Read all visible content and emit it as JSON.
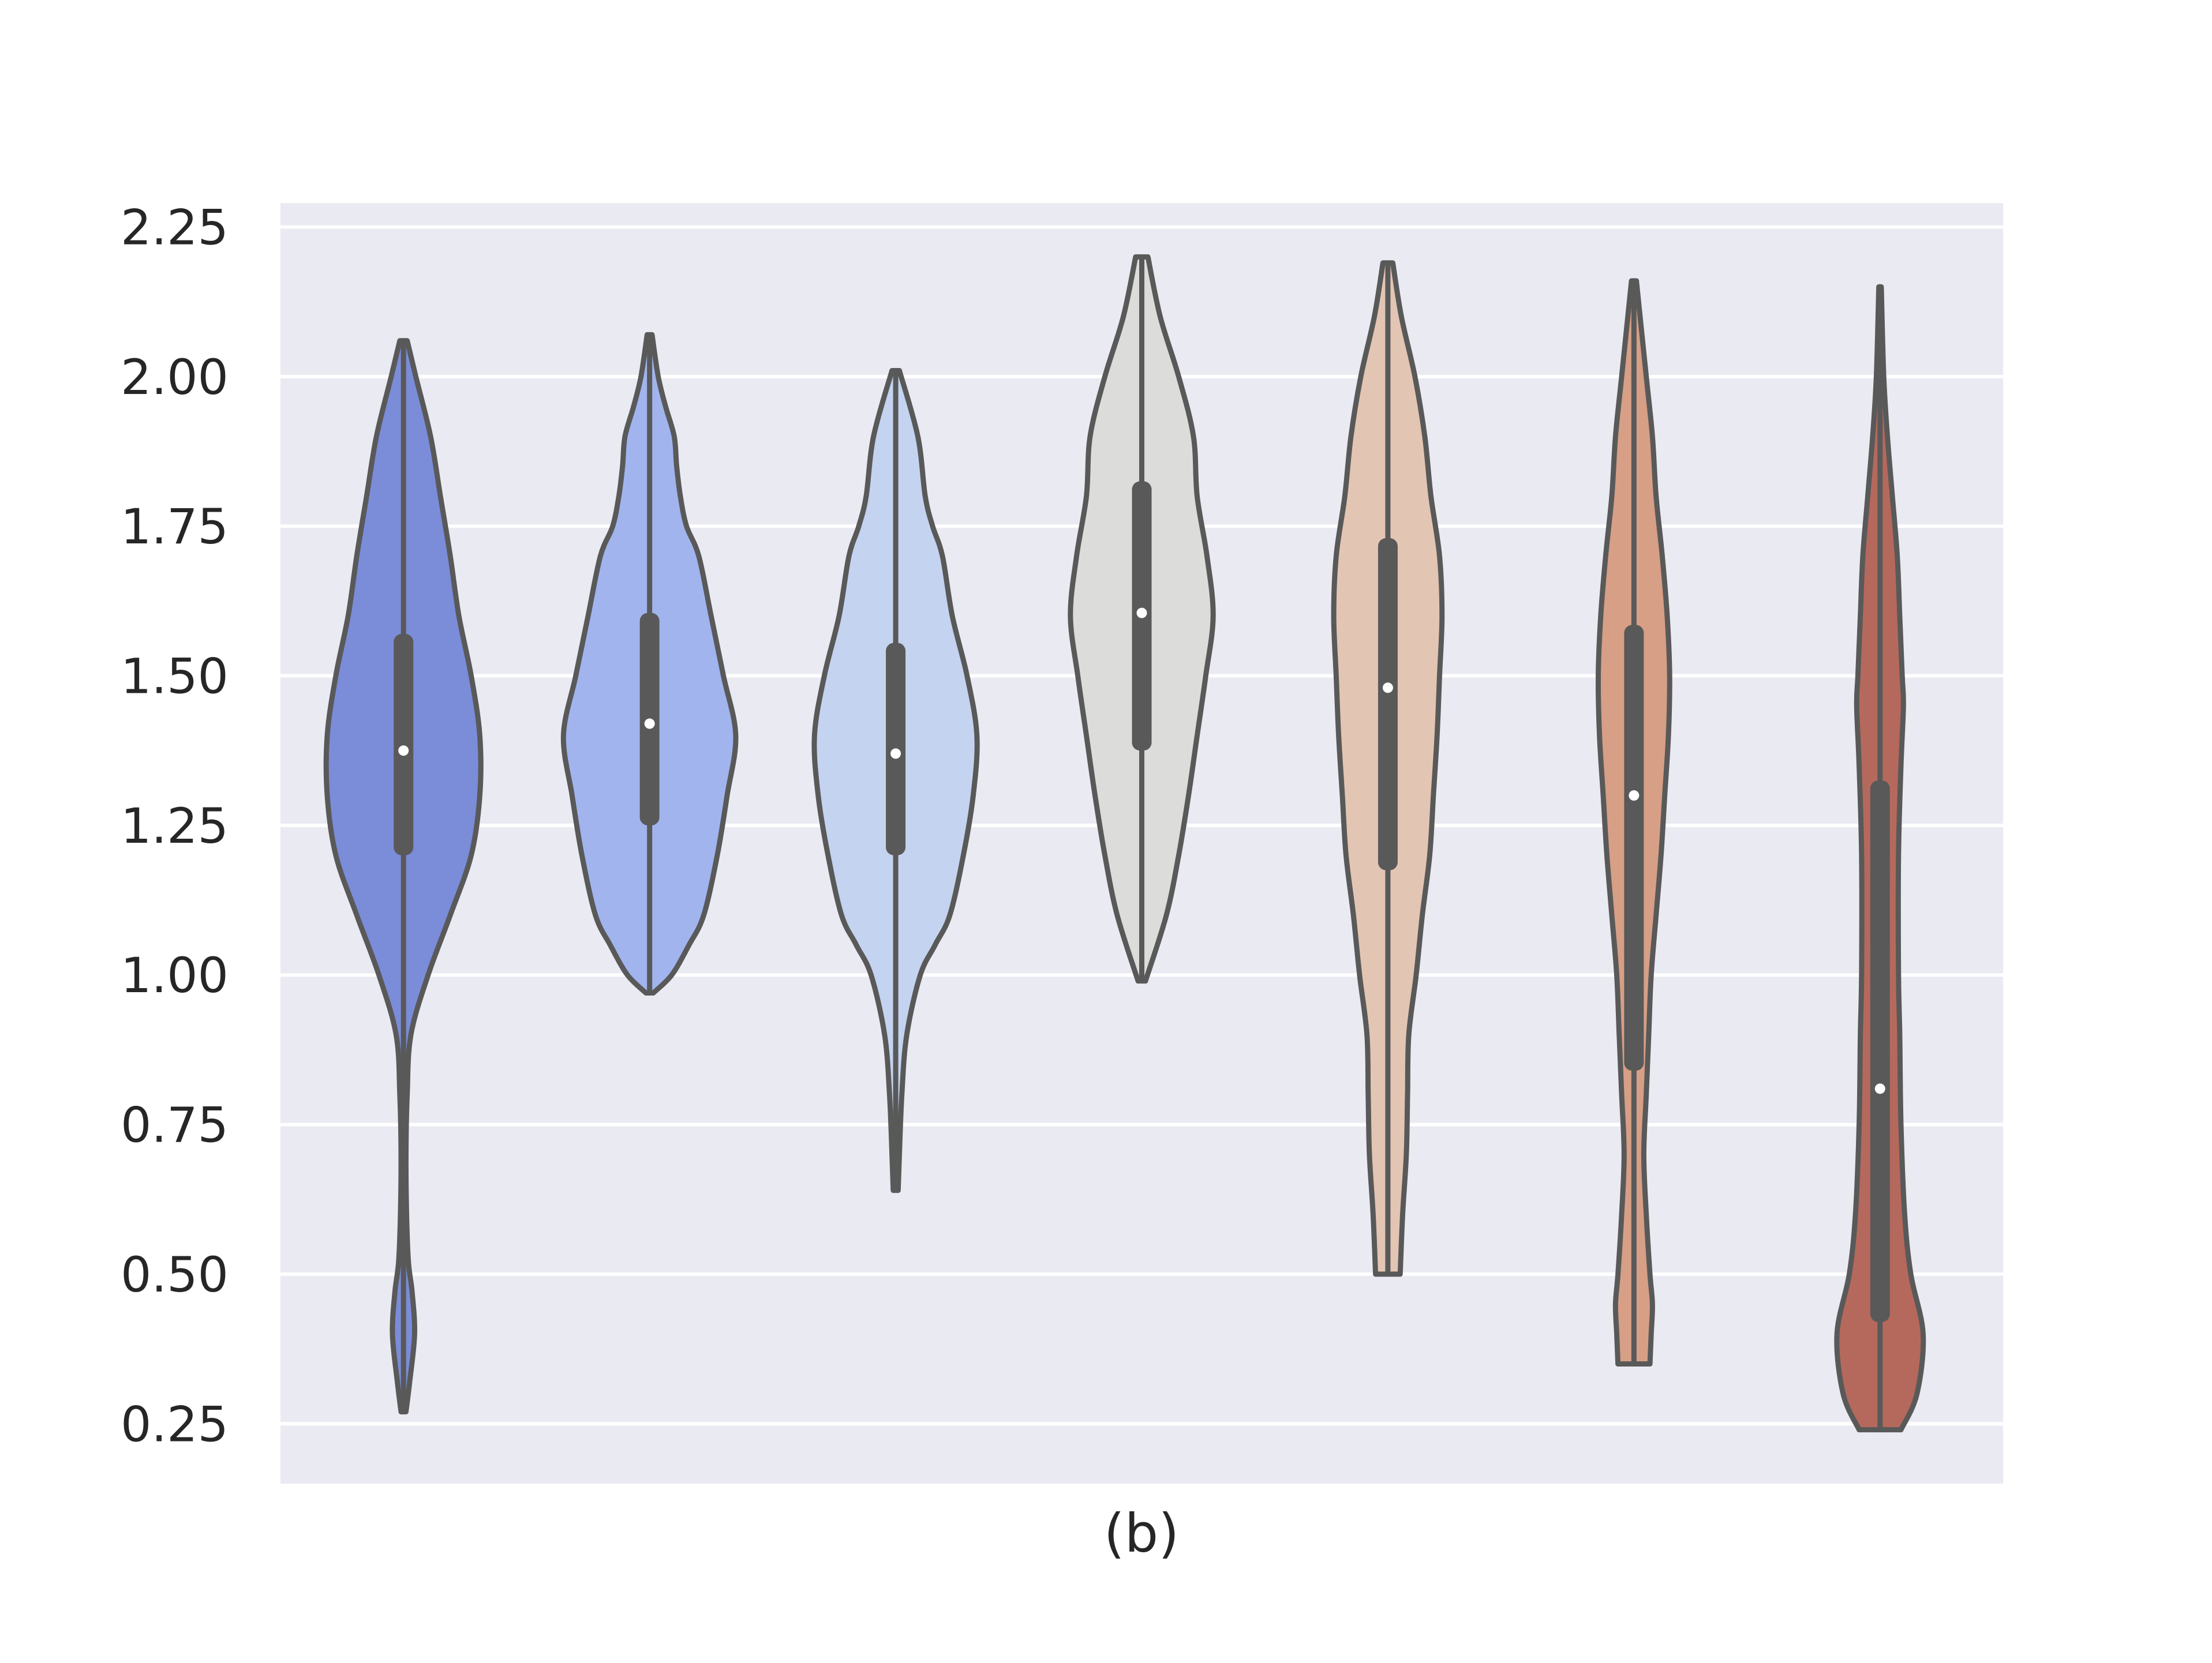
{
  "chart_data": {
    "type": "violin",
    "title": "",
    "xlabel": "(b)",
    "ylabel": "",
    "ylim": [
      0.15,
      2.29
    ],
    "yticks": [
      0.25,
      0.5,
      0.75,
      1.0,
      1.25,
      1.5,
      1.75,
      2.0,
      2.25
    ],
    "ytick_labels": [
      "0.25",
      "0.50",
      "0.75",
      "1.00",
      "1.25",
      "1.50",
      "1.75",
      "2.00",
      "2.25"
    ],
    "grid": true,
    "legend": "none",
    "style": {
      "background": "#eaeaf2",
      "grid_color": "#ffffff",
      "outline_color": "#595959"
    },
    "series": [
      {
        "color": "#7b8cd9",
        "min": 0.27,
        "max": 2.06,
        "q1": 1.2,
        "median": 1.375,
        "q3": 1.57,
        "profile": [
          [
            0.27,
            0.02
          ],
          [
            0.32,
            0.05
          ],
          [
            0.4,
            0.09
          ],
          [
            0.47,
            0.07
          ],
          [
            0.52,
            0.04
          ],
          [
            0.6,
            0.025
          ],
          [
            0.7,
            0.02
          ],
          [
            0.8,
            0.03
          ],
          [
            0.9,
            0.06
          ],
          [
            1.0,
            0.2
          ],
          [
            1.1,
            0.38
          ],
          [
            1.2,
            0.55
          ],
          [
            1.3,
            0.62
          ],
          [
            1.4,
            0.62
          ],
          [
            1.5,
            0.55
          ],
          [
            1.6,
            0.45
          ],
          [
            1.7,
            0.38
          ],
          [
            1.8,
            0.3
          ],
          [
            1.9,
            0.22
          ],
          [
            2.0,
            0.1
          ],
          [
            2.06,
            0.03
          ]
        ]
      },
      {
        "color": "#a1b4ee",
        "min": 0.97,
        "max": 2.07,
        "q1": 1.25,
        "median": 1.42,
        "q3": 1.605,
        "profile": [
          [
            0.97,
            0.03
          ],
          [
            1.0,
            0.18
          ],
          [
            1.05,
            0.32
          ],
          [
            1.1,
            0.44
          ],
          [
            1.2,
            0.55
          ],
          [
            1.3,
            0.63
          ],
          [
            1.4,
            0.7
          ],
          [
            1.5,
            0.6
          ],
          [
            1.6,
            0.5
          ],
          [
            1.7,
            0.4
          ],
          [
            1.75,
            0.3
          ],
          [
            1.8,
            0.25
          ],
          [
            1.85,
            0.22
          ],
          [
            1.9,
            0.2
          ],
          [
            1.95,
            0.13
          ],
          [
            2.0,
            0.07
          ],
          [
            2.07,
            0.02
          ]
        ]
      },
      {
        "color": "#c4d3ef",
        "min": 0.64,
        "max": 2.01,
        "q1": 1.2,
        "median": 1.37,
        "q3": 1.555,
        "profile": [
          [
            0.64,
            0.02
          ],
          [
            0.7,
            0.03
          ],
          [
            0.8,
            0.05
          ],
          [
            0.9,
            0.09
          ],
          [
            1.0,
            0.2
          ],
          [
            1.05,
            0.32
          ],
          [
            1.1,
            0.44
          ],
          [
            1.2,
            0.55
          ],
          [
            1.3,
            0.63
          ],
          [
            1.4,
            0.66
          ],
          [
            1.5,
            0.58
          ],
          [
            1.6,
            0.46
          ],
          [
            1.7,
            0.38
          ],
          [
            1.75,
            0.3
          ],
          [
            1.8,
            0.24
          ],
          [
            1.9,
            0.18
          ],
          [
            2.01,
            0.03
          ]
        ]
      },
      {
        "color": "#dcdcdb",
        "min": 0.99,
        "max": 2.2,
        "q1": 1.375,
        "median": 1.605,
        "q3": 1.825,
        "profile": [
          [
            0.99,
            0.03
          ],
          [
            1.1,
            0.2
          ],
          [
            1.2,
            0.3
          ],
          [
            1.3,
            0.38
          ],
          [
            1.4,
            0.45
          ],
          [
            1.5,
            0.52
          ],
          [
            1.6,
            0.58
          ],
          [
            1.7,
            0.53
          ],
          [
            1.8,
            0.45
          ],
          [
            1.9,
            0.42
          ],
          [
            2.0,
            0.3
          ],
          [
            2.1,
            0.15
          ],
          [
            2.2,
            0.05
          ]
        ]
      },
      {
        "color": "#e3c5b3",
        "min": 0.5,
        "max": 2.19,
        "q1": 1.175,
        "median": 1.48,
        "q3": 1.73,
        "profile": [
          [
            0.5,
            0.1
          ],
          [
            0.6,
            0.12
          ],
          [
            0.7,
            0.15
          ],
          [
            0.8,
            0.16
          ],
          [
            0.9,
            0.17
          ],
          [
            1.0,
            0.23
          ],
          [
            1.1,
            0.28
          ],
          [
            1.2,
            0.34
          ],
          [
            1.3,
            0.37
          ],
          [
            1.4,
            0.4
          ],
          [
            1.5,
            0.42
          ],
          [
            1.6,
            0.44
          ],
          [
            1.7,
            0.42
          ],
          [
            1.8,
            0.35
          ],
          [
            1.9,
            0.3
          ],
          [
            2.0,
            0.22
          ],
          [
            2.1,
            0.11
          ],
          [
            2.19,
            0.04
          ]
        ]
      },
      {
        "color": "#d69f86",
        "min": 0.35,
        "max": 2.16,
        "q1": 0.84,
        "median": 1.3,
        "q3": 1.585,
        "profile": [
          [
            0.35,
            0.13
          ],
          [
            0.4,
            0.14
          ],
          [
            0.45,
            0.15
          ],
          [
            0.5,
            0.13
          ],
          [
            0.6,
            0.1
          ],
          [
            0.7,
            0.08
          ],
          [
            0.8,
            0.1
          ],
          [
            0.9,
            0.12
          ],
          [
            1.0,
            0.14
          ],
          [
            1.1,
            0.18
          ],
          [
            1.2,
            0.22
          ],
          [
            1.3,
            0.25
          ],
          [
            1.4,
            0.28
          ],
          [
            1.5,
            0.29
          ],
          [
            1.6,
            0.27
          ],
          [
            1.7,
            0.23
          ],
          [
            1.8,
            0.18
          ],
          [
            1.9,
            0.15
          ],
          [
            2.0,
            0.1
          ],
          [
            2.16,
            0.02
          ]
        ]
      },
      {
        "color": "#b5695c",
        "min": 0.24,
        "max": 2.15,
        "q1": 0.42,
        "median": 0.81,
        "q3": 1.325,
        "profile": [
          [
            0.24,
            0.17
          ],
          [
            0.3,
            0.3
          ],
          [
            0.4,
            0.35
          ],
          [
            0.5,
            0.25
          ],
          [
            0.6,
            0.2
          ],
          [
            0.75,
            0.17
          ],
          [
            0.9,
            0.16
          ],
          [
            1.0,
            0.15
          ],
          [
            1.2,
            0.15
          ],
          [
            1.35,
            0.17
          ],
          [
            1.45,
            0.19
          ],
          [
            1.5,
            0.18
          ],
          [
            1.6,
            0.16
          ],
          [
            1.7,
            0.14
          ],
          [
            1.8,
            0.1
          ],
          [
            1.9,
            0.06
          ],
          [
            2.0,
            0.03
          ],
          [
            2.15,
            0.01
          ]
        ]
      }
    ]
  }
}
